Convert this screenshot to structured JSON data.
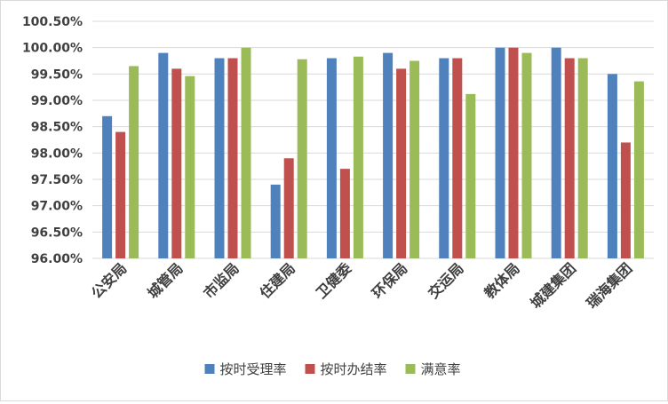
{
  "chart_data": {
    "type": "bar",
    "title": "",
    "xlabel": "",
    "ylabel": "",
    "ylim": [
      96.0,
      100.5
    ],
    "yticks": [
      96.0,
      96.5,
      97.0,
      97.5,
      98.0,
      98.5,
      99.0,
      99.5,
      100.0,
      100.5
    ],
    "ytick_labels": [
      "96.00%",
      "96.50%",
      "97.00%",
      "97.50%",
      "98.00%",
      "98.50%",
      "99.00%",
      "99.50%",
      "100.00%",
      "100.50%"
    ],
    "grid": true,
    "legend_position": "bottom",
    "categories": [
      "公安局",
      "城管局",
      "市监局",
      "住建局",
      "卫健委",
      "环保局",
      "交运局",
      "教体局",
      "城建集团",
      "瑞海集团"
    ],
    "series": [
      {
        "name": "按时受理率",
        "color": "#4f81bd",
        "values": [
          98.7,
          99.9,
          99.8,
          97.4,
          99.8,
          99.9,
          99.8,
          100.0,
          100.0,
          99.5
        ]
      },
      {
        "name": "按时办结率",
        "color": "#c0504d",
        "values": [
          98.4,
          99.6,
          99.8,
          97.9,
          97.7,
          99.6,
          99.8,
          100.0,
          99.8,
          98.2
        ]
      },
      {
        "name": "满意率",
        "color": "#9bbb59",
        "values": [
          99.65,
          99.46,
          100.0,
          99.78,
          99.83,
          99.75,
          99.12,
          99.9,
          99.8,
          99.36
        ]
      }
    ]
  }
}
